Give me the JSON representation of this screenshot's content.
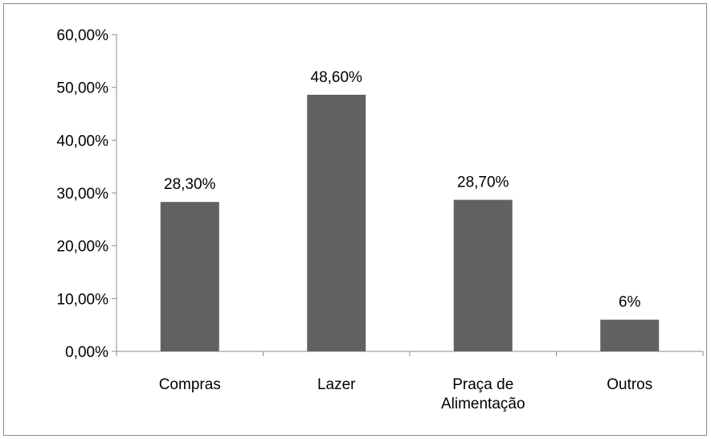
{
  "chart_data": {
    "type": "bar",
    "categories": [
      "Compras",
      "Lazer",
      "Praça de Alimentação",
      "Outros"
    ],
    "category_lines": [
      [
        "Compras"
      ],
      [
        "Lazer"
      ],
      [
        "Praça de",
        "Alimentação"
      ],
      [
        "Outros"
      ]
    ],
    "values": [
      28.3,
      48.6,
      28.7,
      6
    ],
    "data_labels": [
      "28,30%",
      "48,60%",
      "28,70%",
      "6%"
    ],
    "ylim": [
      0,
      60
    ],
    "yticks": [
      0,
      10,
      20,
      30,
      40,
      50,
      60
    ],
    "ytick_labels": [
      "0,00%",
      "10,00%",
      "20,00%",
      "30,00%",
      "40,00%",
      "50,00%",
      "60,00%"
    ],
    "title": "",
    "xlabel": "",
    "ylabel": "",
    "grid": false,
    "bar_color": "#616161",
    "axis_color": "#8c8c8c"
  }
}
